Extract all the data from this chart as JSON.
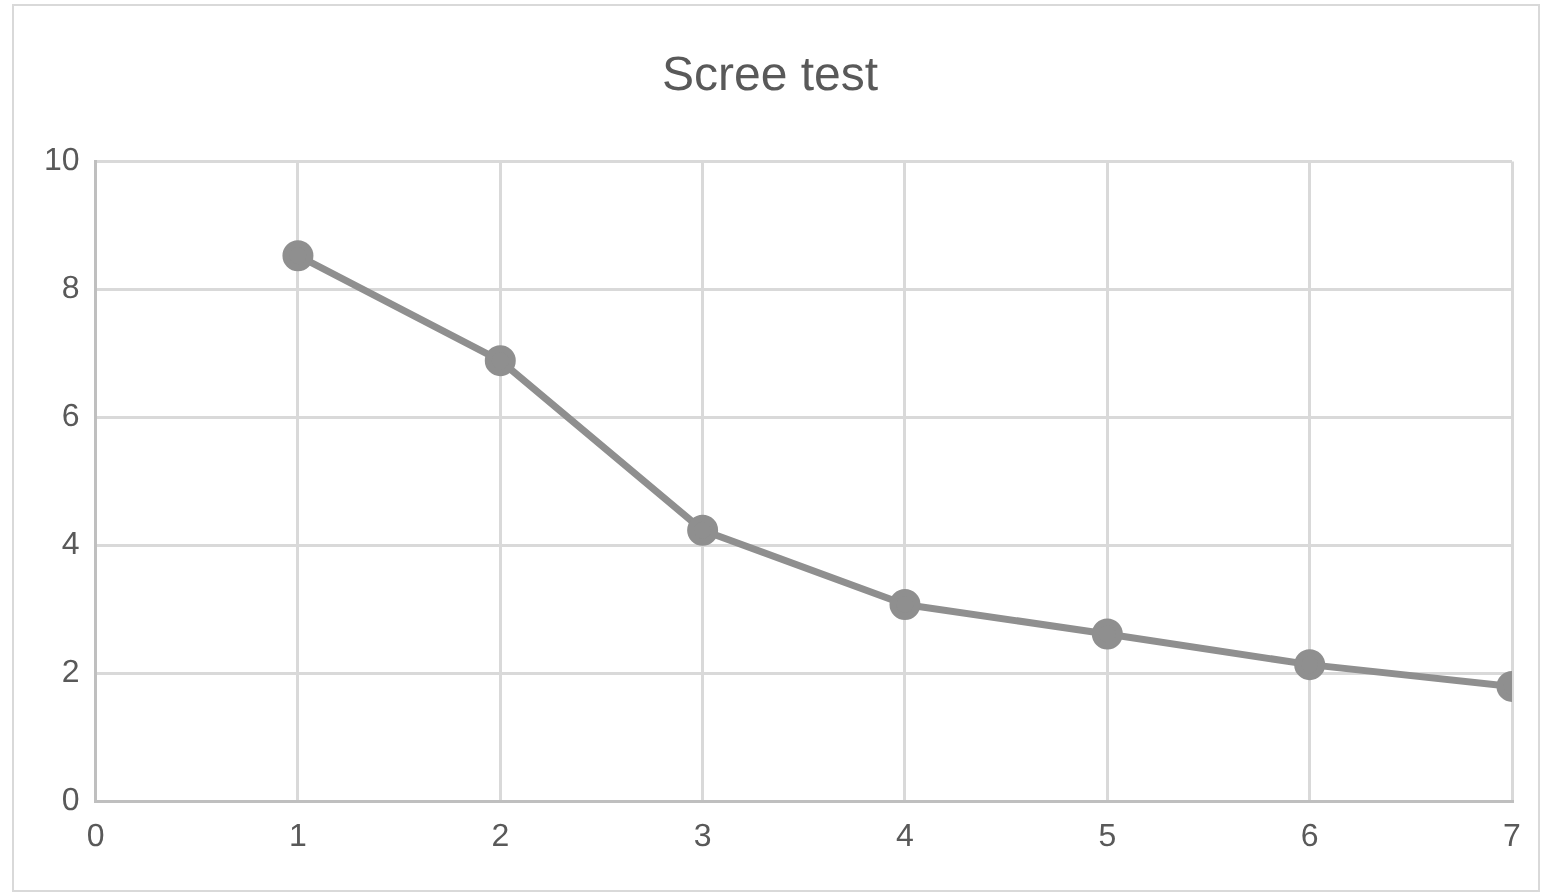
{
  "chart_data": {
    "type": "line",
    "title": "Scree test",
    "x": [
      1,
      2,
      3,
      4,
      5,
      6,
      7
    ],
    "series": [
      {
        "color": "#8f8f8f",
        "values": [
          8.53,
          6.89,
          4.24,
          3.08,
          2.62,
          2.14,
          1.8
        ]
      }
    ],
    "xlim": [
      0,
      7
    ],
    "xticks": [
      0,
      1,
      2,
      3,
      4,
      5,
      6,
      7
    ],
    "ylim": [
      0,
      10
    ],
    "yticks": [
      0,
      2,
      4,
      6,
      8,
      10
    ],
    "grid": true,
    "legend": false,
    "marker": "circle",
    "line_style": "solid"
  }
}
